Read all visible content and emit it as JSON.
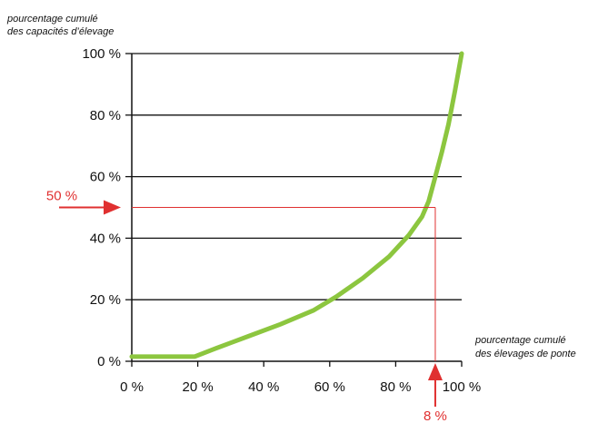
{
  "chart_data": {
    "type": "line",
    "ylabel": [
      "pourcentage cumulé",
      "des capacités d’élevage"
    ],
    "xlabel": [
      "pourcentage cumulé",
      "des élevages de ponte"
    ],
    "xlim": [
      0,
      100
    ],
    "ylim": [
      0,
      100
    ],
    "x_ticks": [
      "0 %",
      "20 %",
      "40 %",
      "60 %",
      "80 %",
      "100 %"
    ],
    "y_ticks": [
      "0 %",
      "20 %",
      "40 %",
      "60 %",
      "80 %",
      "100 %"
    ],
    "grid": "horizontal",
    "series": [
      {
        "color": "#8cc63f",
        "x": [
          0,
          19,
          25,
          35,
          45,
          55,
          62,
          70,
          78,
          84,
          88,
          90,
          92,
          94,
          96,
          98,
          100
        ],
        "y": [
          1.5,
          1.5,
          4,
          8,
          12,
          16.5,
          21,
          27,
          34,
          41,
          47,
          52,
          60,
          68,
          77,
          88,
          100
        ]
      }
    ],
    "annotations": {
      "color": "#e03030",
      "y_marker": {
        "label": "50 %",
        "value": 50
      },
      "x_marker": {
        "label": "8 %",
        "value": 92
      }
    }
  }
}
